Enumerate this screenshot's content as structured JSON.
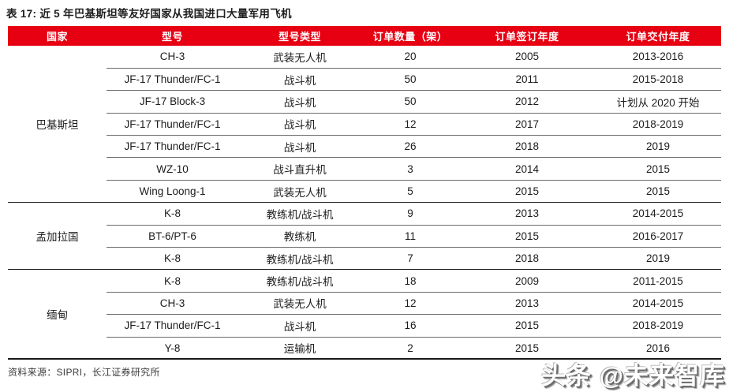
{
  "page": {
    "title": "表 17: 近 5 年巴基斯坦等友好国家从我国进口大量军用飞机"
  },
  "colors": {
    "header_red": "#e60012"
  },
  "table": {
    "columns": [
      "国家",
      "型号",
      "型号类型",
      "订单数量（架）",
      "订单签订年度",
      "订单交付年度"
    ],
    "groups": [
      {
        "country": "巴基斯坦",
        "rows": [
          {
            "model": "CH-3",
            "type": "武装无人机",
            "qty": "20",
            "sign_year": "2005",
            "delivery_year": "2013-2016"
          },
          {
            "model": "JF-17 Thunder/FC-1",
            "type": "战斗机",
            "qty": "50",
            "sign_year": "2011",
            "delivery_year": "2015-2018"
          },
          {
            "model": "JF-17 Block-3",
            "type": "战斗机",
            "qty": "50",
            "sign_year": "2012",
            "delivery_year": "计划从 2020 开始"
          },
          {
            "model": "JF-17 Thunder/FC-1",
            "type": "战斗机",
            "qty": "12",
            "sign_year": "2017",
            "delivery_year": "2018-2019"
          },
          {
            "model": "JF-17 Thunder/FC-1",
            "type": "战斗机",
            "qty": "26",
            "sign_year": "2018",
            "delivery_year": "2019"
          },
          {
            "model": "WZ-10",
            "type": "战斗直升机",
            "qty": "3",
            "sign_year": "2014",
            "delivery_year": "2015"
          },
          {
            "model": "Wing Loong-1",
            "type": "武装无人机",
            "qty": "5",
            "sign_year": "2015",
            "delivery_year": "2015"
          }
        ]
      },
      {
        "country": "孟加拉国",
        "rows": [
          {
            "model": "K-8",
            "type": "教练机/战斗机",
            "qty": "9",
            "sign_year": "2013",
            "delivery_year": "2014-2015"
          },
          {
            "model": "BT-6/PT-6",
            "type": "教练机",
            "qty": "11",
            "sign_year": "2015",
            "delivery_year": "2016-2017"
          },
          {
            "model": "K-8",
            "type": "教练机/战斗机",
            "qty": "7",
            "sign_year": "2018",
            "delivery_year": "2019"
          }
        ]
      },
      {
        "country": "缅甸",
        "rows": [
          {
            "model": "K-8",
            "type": "教练机/战斗机",
            "qty": "18",
            "sign_year": "2009",
            "delivery_year": "2011-2015"
          },
          {
            "model": "CH-3",
            "type": "武装无人机",
            "qty": "12",
            "sign_year": "2013",
            "delivery_year": "2014-2015"
          },
          {
            "model": "JF-17 Thunder/FC-1",
            "type": "战斗机",
            "qty": "16",
            "sign_year": "2015",
            "delivery_year": "2018-2019"
          },
          {
            "model": "Y-8",
            "type": "运输机",
            "qty": "2",
            "sign_year": "2015",
            "delivery_year": "2016"
          }
        ]
      }
    ]
  },
  "footer": {
    "source": "资料来源：SIPRI，长江证券研究所"
  },
  "watermark": {
    "text": "头条 @未来智库"
  }
}
